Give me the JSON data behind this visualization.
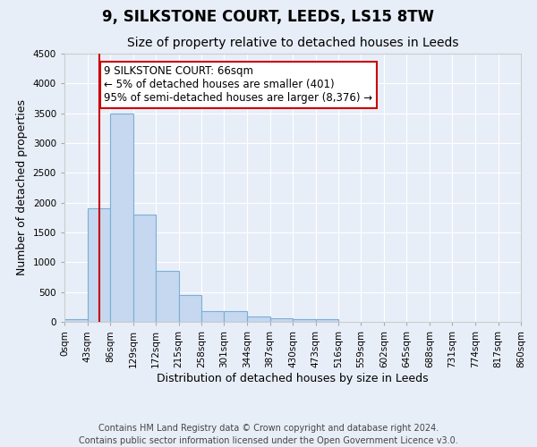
{
  "title": "9, SILKSTONE COURT, LEEDS, LS15 8TW",
  "subtitle": "Size of property relative to detached houses in Leeds",
  "xlabel": "Distribution of detached houses by size in Leeds",
  "ylabel": "Number of detached properties",
  "bin_edges": [
    0,
    43,
    86,
    129,
    172,
    215,
    258,
    301,
    344,
    387,
    430,
    473,
    516,
    559,
    602,
    645,
    688,
    731,
    774,
    817,
    860
  ],
  "bar_heights": [
    50,
    1900,
    3500,
    1800,
    850,
    450,
    175,
    175,
    90,
    60,
    50,
    50,
    0,
    0,
    0,
    0,
    0,
    0,
    0,
    0
  ],
  "bar_color": "#c5d8f0",
  "bar_edge_color": "#7bafd4",
  "background_color": "#e8eef8",
  "grid_color": "#ffffff",
  "vline_x": 66,
  "vline_color": "#cc0000",
  "ylim": [
    0,
    4500
  ],
  "yticks": [
    0,
    500,
    1000,
    1500,
    2000,
    2500,
    3000,
    3500,
    4000,
    4500
  ],
  "annotation_text": "9 SILKSTONE COURT: 66sqm\n← 5% of detached houses are smaller (401)\n95% of semi-detached houses are larger (8,376) →",
  "annotation_box_facecolor": "#ffffff",
  "annotation_box_edgecolor": "#cc0000",
  "footer_text": "Contains HM Land Registry data © Crown copyright and database right 2024.\nContains public sector information licensed under the Open Government Licence v3.0.",
  "title_fontsize": 12,
  "subtitle_fontsize": 10,
  "axis_label_fontsize": 9,
  "tick_fontsize": 7.5,
  "annotation_fontsize": 8.5,
  "footer_fontsize": 7
}
